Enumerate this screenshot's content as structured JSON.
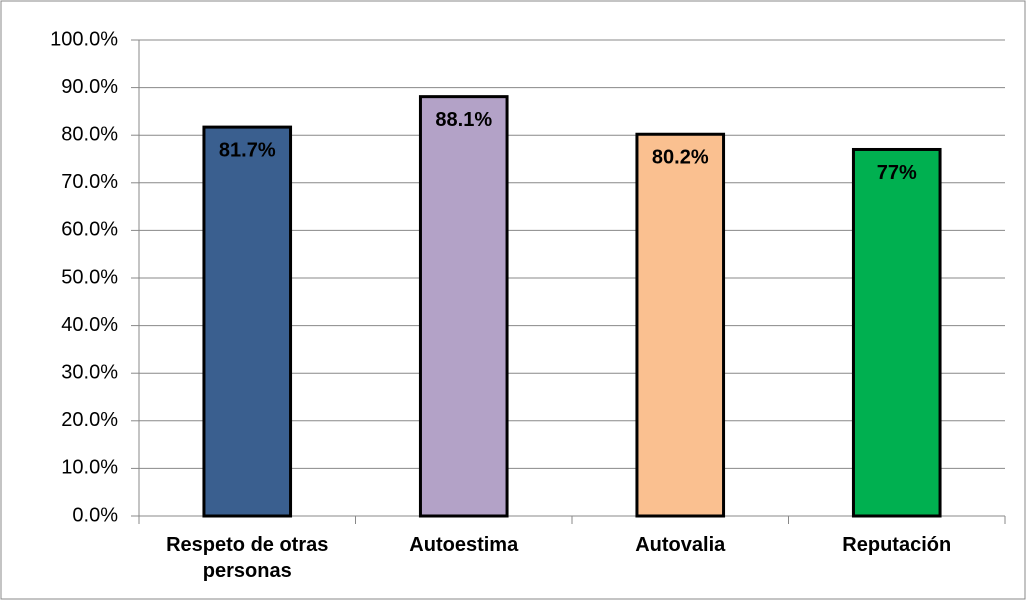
{
  "chart_data": {
    "type": "bar",
    "categories": [
      "Respeto de otras personas",
      "Autoestima",
      "Autovalia",
      "Reputación"
    ],
    "values": [
      81.7,
      88.1,
      80.2,
      77
    ],
    "value_labels": [
      "81.7%",
      "88.1%",
      "80.2%",
      "77%"
    ],
    "colors": [
      "#3a5f8f",
      "#b3a2c7",
      "#fac090",
      "#00b050"
    ],
    "ylim": [
      0,
      100
    ],
    "yticks": [
      {
        "value": 0,
        "label": "0.0%"
      },
      {
        "value": 10,
        "label": "10.0%"
      },
      {
        "value": 20,
        "label": "20.0%"
      },
      {
        "value": 30,
        "label": "30.0%"
      },
      {
        "value": 40,
        "label": "40.0%"
      },
      {
        "value": 50,
        "label": "50.0%"
      },
      {
        "value": 60,
        "label": "60.0%"
      },
      {
        "value": 70,
        "label": "70.0%"
      },
      {
        "value": 80,
        "label": "80.0%"
      },
      {
        "value": 90,
        "label": "90.0%"
      },
      {
        "value": 100,
        "label": "100.0%"
      }
    ],
    "grid": true
  }
}
